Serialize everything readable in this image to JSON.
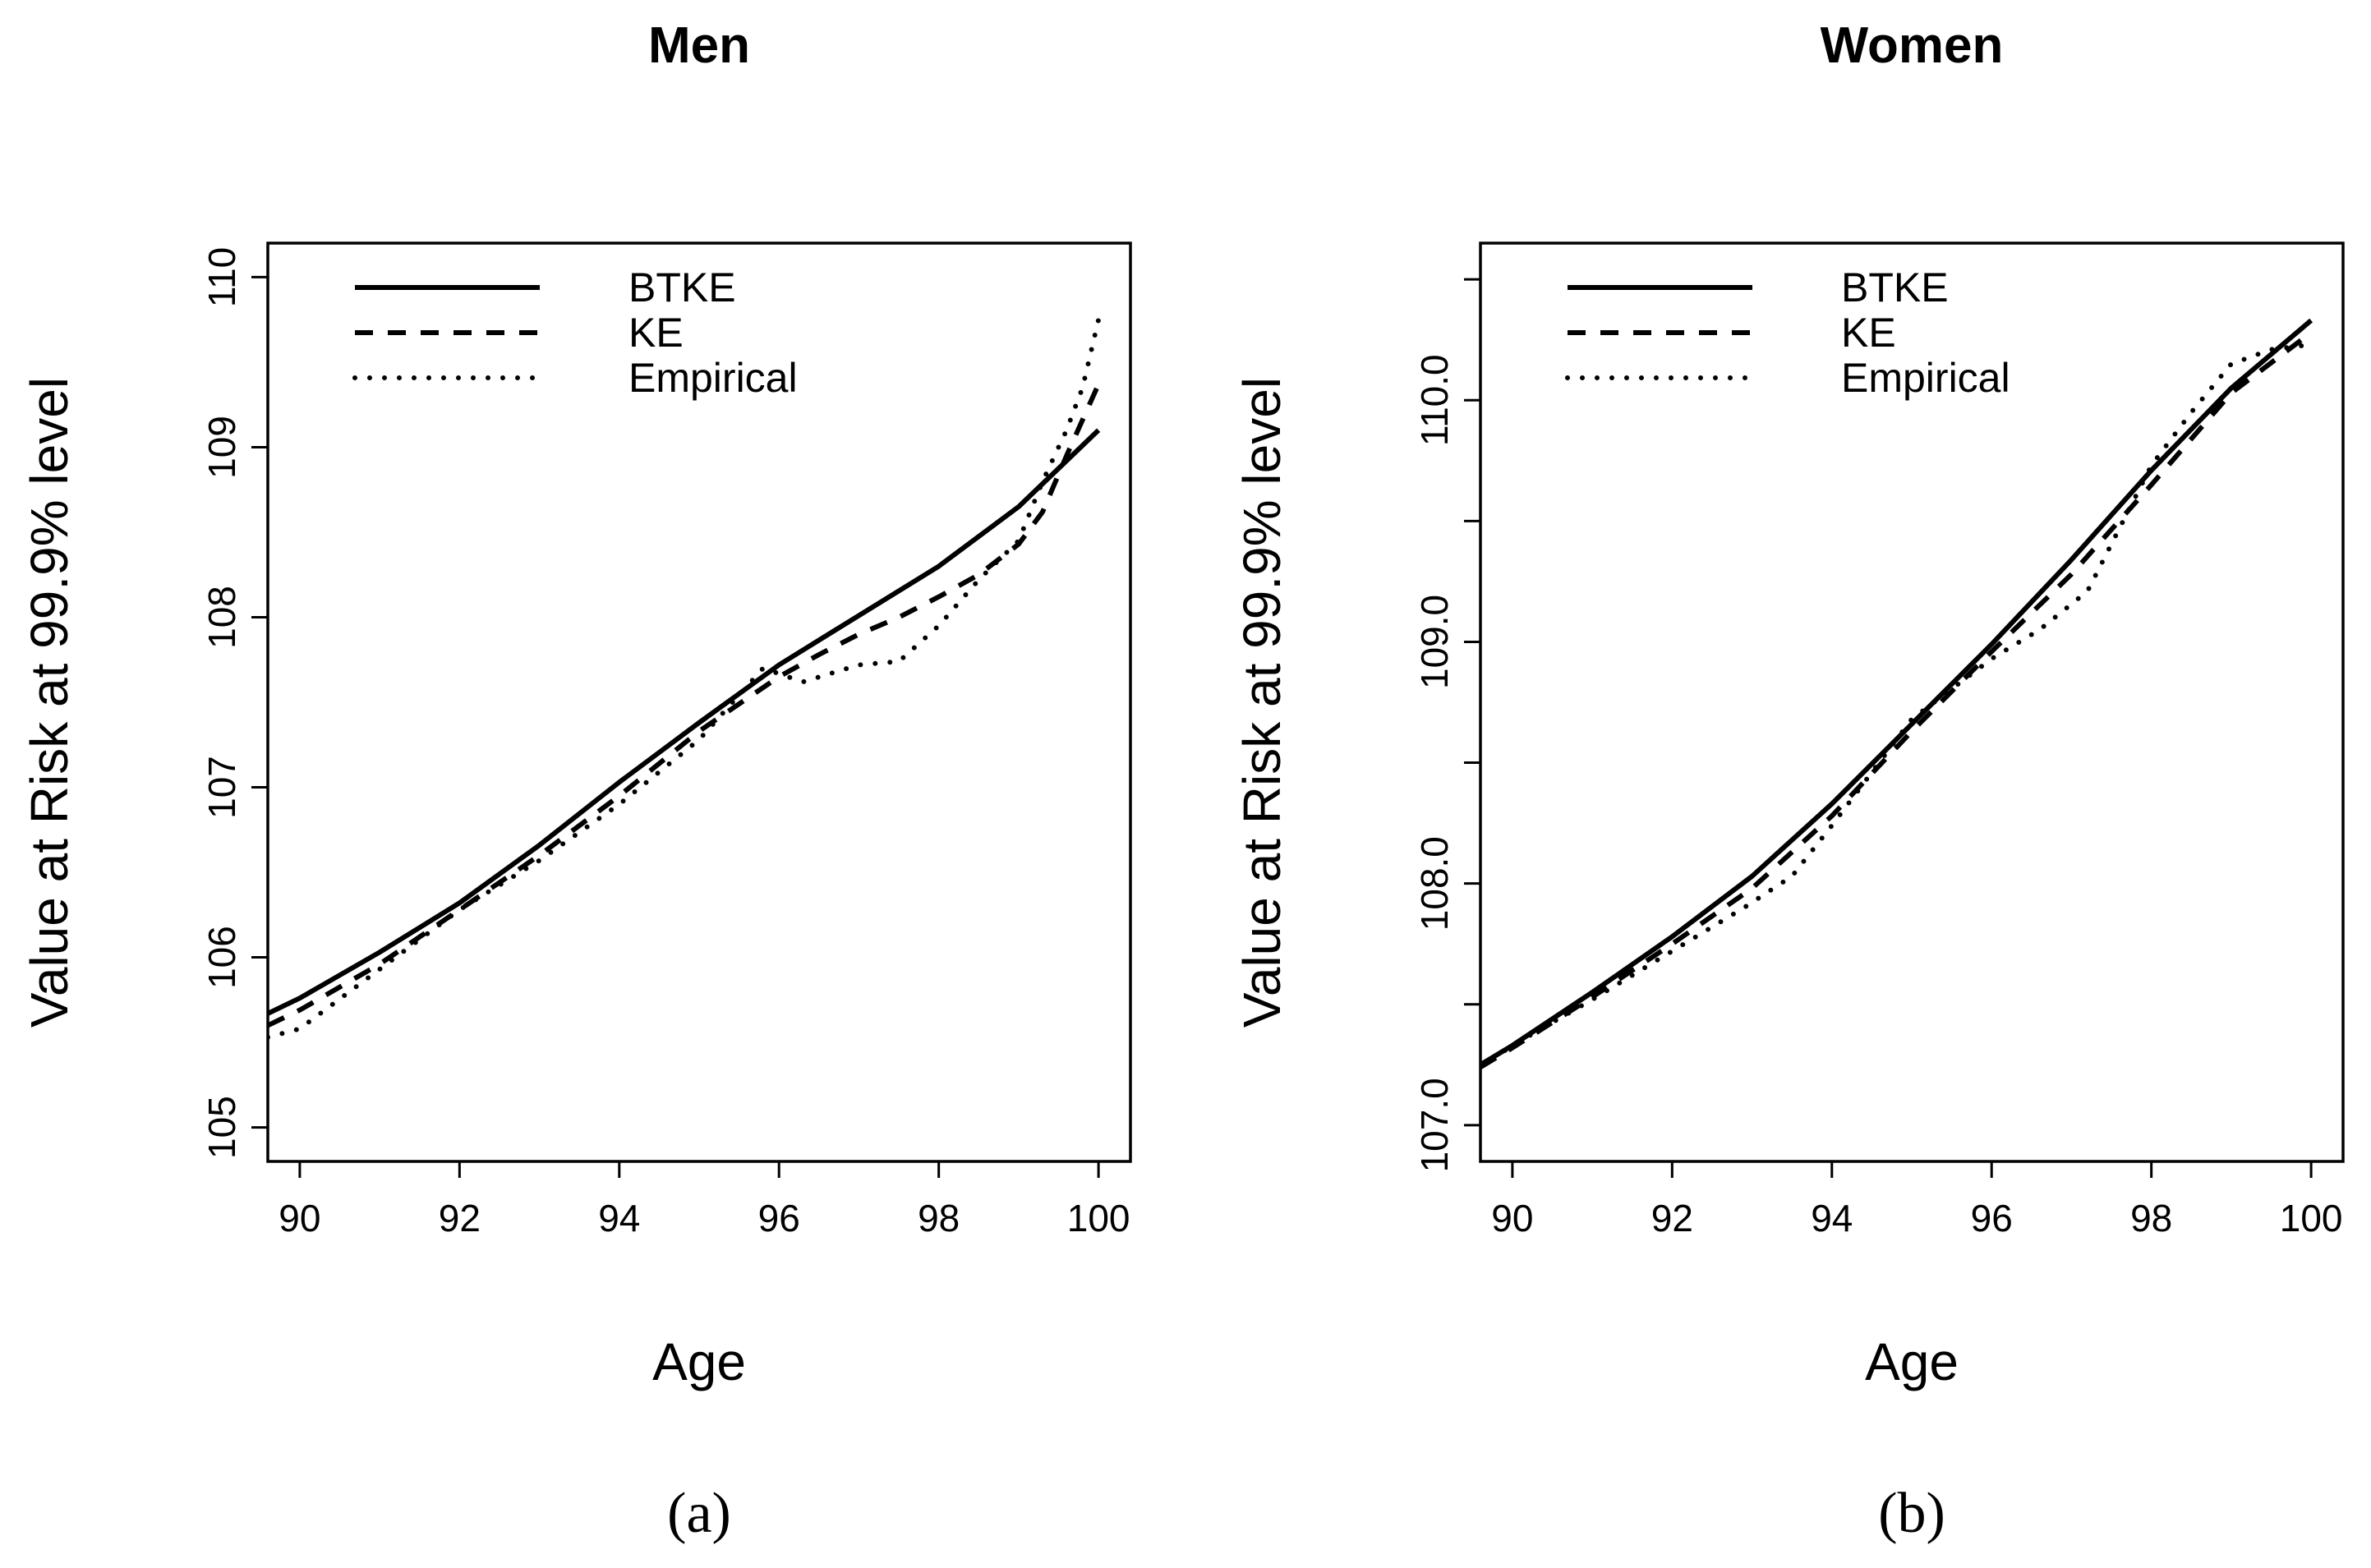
{
  "chart_data": [
    {
      "type": "line",
      "title": "Men",
      "xlabel": "Age",
      "ylabel": "Value at Risk at 99.9% level",
      "caption": "(a)",
      "xlim": [
        89.6,
        100.4
      ],
      "ylim": [
        104.8,
        110.2
      ],
      "xticks": [
        90,
        92,
        94,
        96,
        98,
        100
      ],
      "xtick_labels": [
        "90",
        "92",
        "94",
        "96",
        "98",
        "100"
      ],
      "yticks": [
        105,
        106,
        107,
        108,
        109,
        110
      ],
      "ytick_labels": [
        "105",
        "106",
        "107",
        "108",
        "109",
        "110"
      ],
      "legend_position": "top-left",
      "series": [
        {
          "name": "BTKE",
          "style": "solid",
          "x": [
            89.6,
            90,
            91,
            92,
            93,
            94,
            95,
            96,
            97,
            98,
            99,
            100
          ],
          "y": [
            105.67,
            105.76,
            106.03,
            106.32,
            106.66,
            107.03,
            107.38,
            107.72,
            108.01,
            108.3,
            108.65,
            109.1
          ]
        },
        {
          "name": "KE",
          "style": "dashed",
          "x": [
            89.6,
            90,
            91,
            92,
            93,
            94,
            95,
            96,
            96.5,
            97,
            97.5,
            98,
            98.5,
            99,
            99.3,
            99.6,
            100
          ],
          "y": [
            105.6,
            105.69,
            105.96,
            106.28,
            106.6,
            106.95,
            107.33,
            107.65,
            107.78,
            107.9,
            108.0,
            108.12,
            108.25,
            108.43,
            108.62,
            108.95,
            109.37
          ]
        },
        {
          "name": "Empirical",
          "style": "dotted",
          "x": [
            89.6,
            90,
            91,
            92,
            93,
            94,
            95,
            95.8,
            96.3,
            97,
            97.5,
            98,
            98.5,
            99,
            99.3,
            99.6,
            99.8,
            100
          ],
          "y": [
            105.53,
            105.58,
            105.93,
            106.28,
            106.57,
            106.9,
            107.28,
            107.7,
            107.62,
            107.72,
            107.74,
            107.95,
            108.22,
            108.45,
            108.8,
            109.1,
            109.35,
            109.75
          ]
        }
      ]
    },
    {
      "type": "line",
      "title": "Women",
      "xlabel": "Age",
      "ylabel": "Value at Risk at 99.9% level",
      "caption": "(b)",
      "xlim": [
        89.6,
        100.4
      ],
      "ylim": [
        106.85,
        110.65
      ],
      "xticks": [
        90,
        92,
        94,
        96,
        98,
        100
      ],
      "xtick_labels": [
        "90",
        "92",
        "94",
        "96",
        "98",
        "100"
      ],
      "yticks": [
        107.0,
        107.5,
        108.0,
        108.5,
        109.0,
        109.5,
        110.0,
        110.5
      ],
      "ytick_labels": [
        "107.0",
        "",
        "108.0",
        "",
        "109.0",
        "",
        "110.0",
        ""
      ],
      "legend_position": "top-left",
      "series": [
        {
          "name": "BTKE",
          "style": "solid",
          "x": [
            89.6,
            90,
            91,
            92,
            93,
            94,
            95,
            96,
            97,
            98,
            99,
            100
          ],
          "y": [
            107.25,
            107.33,
            107.55,
            107.78,
            108.03,
            108.33,
            108.66,
            108.99,
            109.34,
            109.71,
            110.05,
            110.33
          ]
        },
        {
          "name": "KE",
          "style": "dashed",
          "x": [
            89.6,
            90,
            91,
            92,
            93,
            94,
            95,
            96,
            97,
            98,
            99,
            100
          ],
          "y": [
            107.24,
            107.32,
            107.53,
            107.75,
            107.98,
            108.28,
            108.63,
            108.96,
            109.28,
            109.65,
            110.03,
            110.28
          ]
        },
        {
          "name": "Empirical",
          "style": "dotted",
          "x": [
            89.6,
            90,
            91,
            92,
            92.9,
            93.5,
            94,
            95,
            96,
            96.6,
            97.2,
            98,
            98.5,
            99,
            99.5,
            100
          ],
          "y": [
            107.24,
            107.33,
            107.52,
            107.72,
            107.9,
            108.03,
            108.24,
            108.68,
            108.93,
            109.05,
            109.21,
            109.73,
            109.95,
            110.15,
            110.21,
            110.23
          ]
        }
      ]
    }
  ]
}
